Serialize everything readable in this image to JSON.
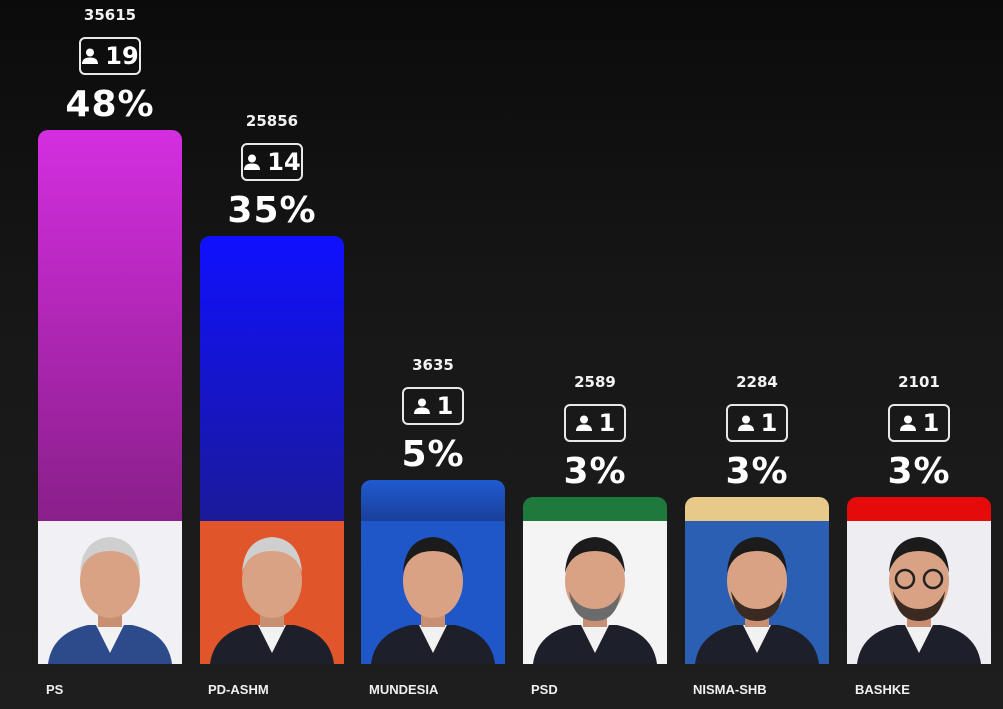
{
  "chart_data": {
    "type": "bar",
    "categories": [
      "PS",
      "PD-ASHM",
      "MUNDESIA",
      "PSD",
      "NISMA-SHB",
      "BASHKE"
    ],
    "votes": [
      35615,
      25856,
      3635,
      2589,
      2284,
      2101
    ],
    "seats": [
      19,
      14,
      1,
      1,
      1,
      1
    ],
    "percent_labels": [
      "48%",
      "35%",
      "5%",
      "3%",
      "3%",
      "3%"
    ],
    "values": [
      48,
      35,
      5,
      3,
      3,
      3
    ],
    "ylim": [
      0,
      48
    ],
    "colors": [
      [
        "#d42ee0",
        "#8a1f8a"
      ],
      [
        "#1010ff",
        "#1a1a9a"
      ],
      [
        "#1f5bd0",
        "#1a3f9a"
      ],
      [
        "#1e7a3c",
        "#1e7a3c"
      ],
      [
        "#e7c98a",
        "#e7c98a"
      ],
      [
        "#e50b0b",
        "#e50b0b"
      ]
    ],
    "photo_bg": [
      "#f1f1f5",
      "#e0562a",
      "#1f57c9",
      "#f4f4f4",
      "#2a5fb3",
      "#eeeef2"
    ],
    "icon": "person-icon"
  }
}
